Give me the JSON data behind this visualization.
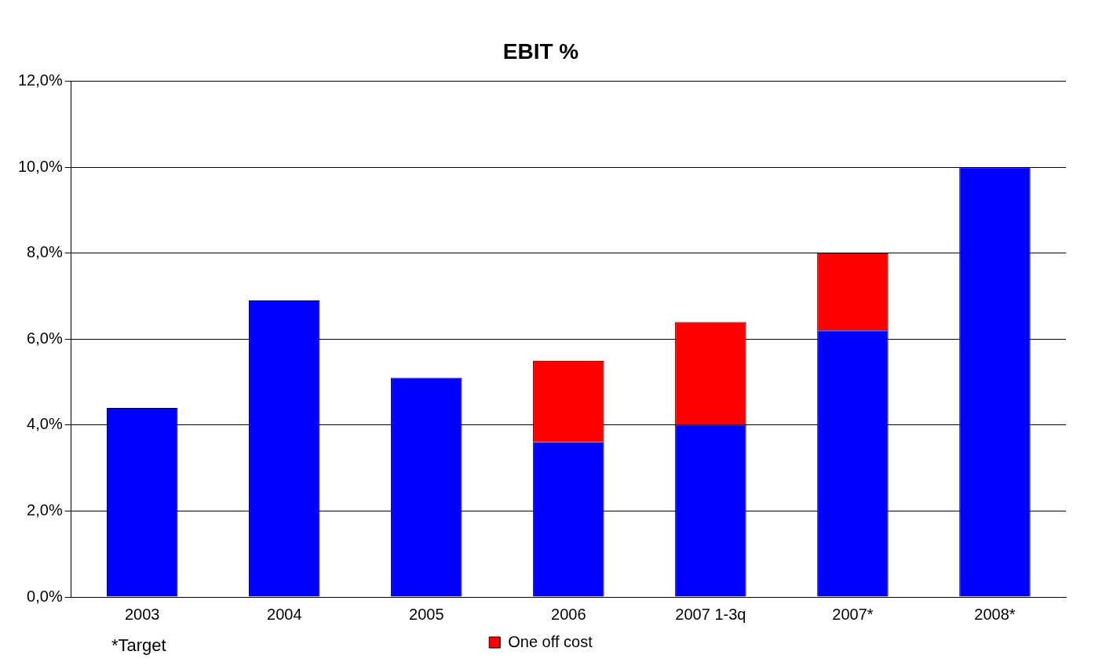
{
  "chart_data": {
    "type": "bar",
    "title": "EBIT %",
    "stacked": true,
    "categories": [
      "2003",
      "2004",
      "2005",
      "2006",
      "2007 1-3q",
      "2007*",
      "2008*"
    ],
    "series": [
      {
        "color": "#0000ff",
        "values": [
          4.4,
          6.9,
          5.1,
          3.6,
          4.0,
          6.2,
          10.0
        ]
      },
      {
        "name": "One off cost",
        "color": "#ff0000",
        "values": [
          null,
          null,
          null,
          1.9,
          2.4,
          1.8,
          null
        ]
      }
    ],
    "ylim": [
      0,
      12
    ],
    "yticks": [
      {
        "value": 0,
        "label": "0,0%"
      },
      {
        "value": 2,
        "label": "2,0%"
      },
      {
        "value": 4,
        "label": "4,0%"
      },
      {
        "value": 6,
        "label": "6,0%"
      },
      {
        "value": 8,
        "label": "8,0%"
      },
      {
        "value": 10,
        "label": "10,0%"
      },
      {
        "value": 12,
        "label": "12,0%"
      }
    ],
    "grid": "y",
    "legend": "bottom",
    "annotations": [
      "*Target"
    ]
  }
}
